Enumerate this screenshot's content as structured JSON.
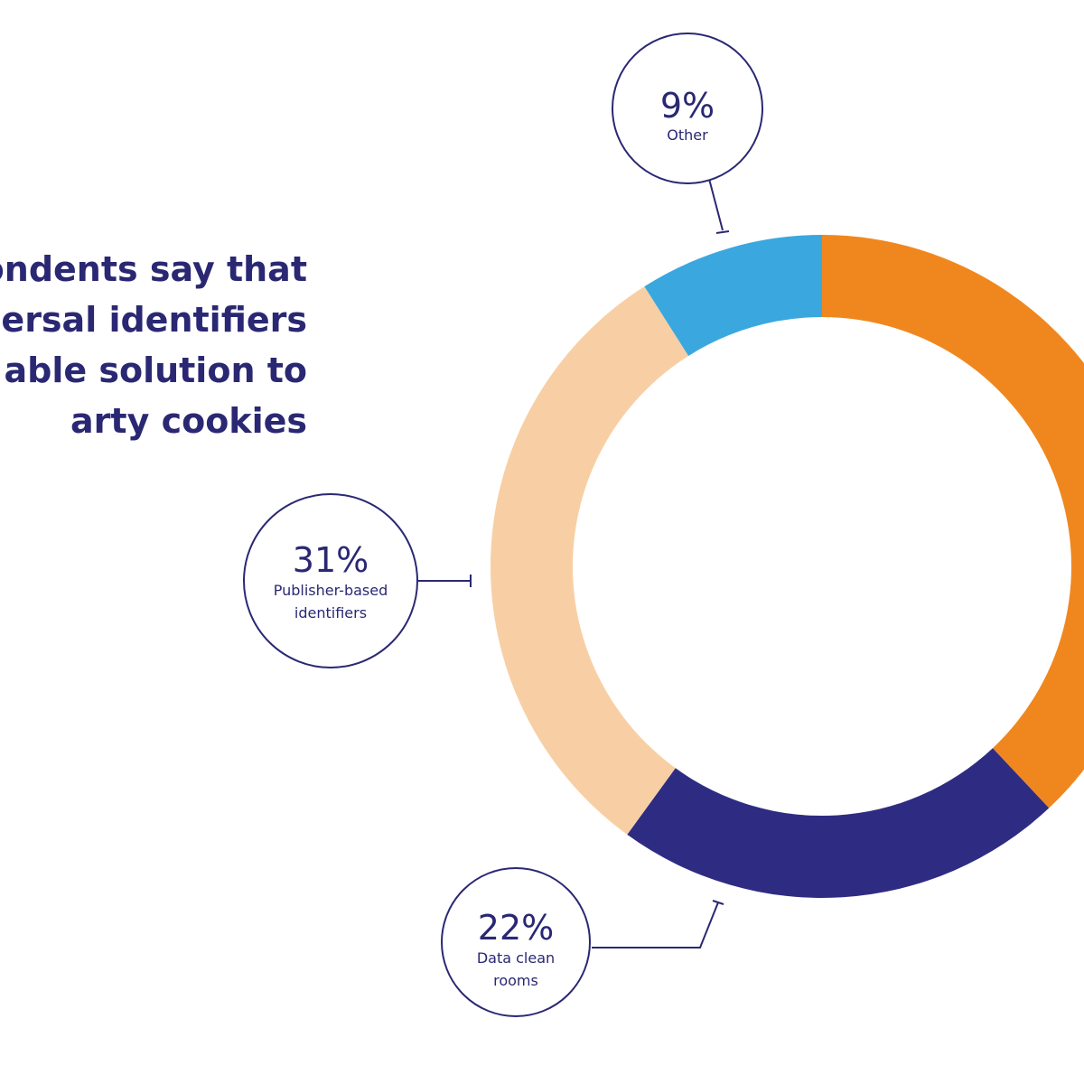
{
  "headline": {
    "lines": [
      "ondents say that",
      "ersal identifiers",
      "able solution to",
      "arty cookies"
    ]
  },
  "chart_data": {
    "type": "pie",
    "donut": true,
    "colors": {
      "orange": "#f0871e",
      "navy": "#2e2c82",
      "peach": "#f8cfa4",
      "blue": "#3aa8df",
      "ink": "#2a2873"
    },
    "slices": [
      {
        "label": "",
        "value": 38,
        "display": "",
        "color": "#f0871e"
      },
      {
        "label": "Data clean rooms",
        "value": 22,
        "display": "22%",
        "label_lines": [
          "Data clean",
          "rooms"
        ],
        "color": "#2e2c82"
      },
      {
        "label": "Publisher-based identifiers",
        "value": 31,
        "display": "31%",
        "label_lines": [
          "Publisher-based",
          "identifiers"
        ],
        "color": "#f8cfa4"
      },
      {
        "label": "Other",
        "value": 9,
        "display": "9%",
        "label_lines": [
          "Other"
        ],
        "color": "#3aa8df"
      }
    ]
  }
}
